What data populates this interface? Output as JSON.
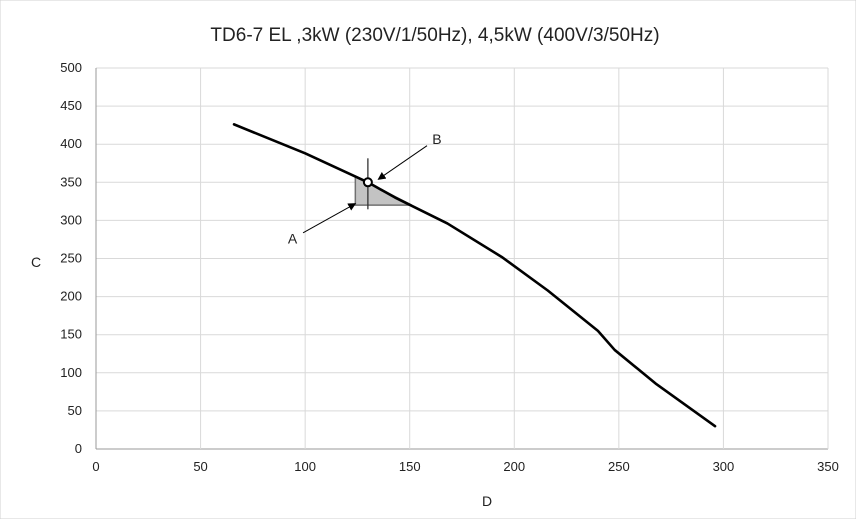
{
  "chart_data": {
    "type": "line",
    "title": "TD6-7 EL ,3kW (230V/1/50Hz), 4,5kW (400V/3/50Hz)",
    "xlabel": "D",
    "ylabel": "C",
    "xlim": [
      0,
      350
    ],
    "ylim": [
      0,
      500
    ],
    "xticks": [
      0,
      50,
      100,
      150,
      200,
      250,
      300,
      350
    ],
    "yticks": [
      0,
      50,
      100,
      150,
      200,
      250,
      300,
      350,
      400,
      450,
      500
    ],
    "grid": true,
    "series": [
      {
        "color": "#000000",
        "x": [
          66,
          100,
          130,
          143,
          168,
          194,
          216,
          240,
          248,
          268,
          296
        ],
        "y": [
          426,
          388,
          350,
          330,
          296,
          252,
          208,
          155,
          130,
          85,
          30
        ]
      }
    ],
    "operating_point": {
      "x": 130,
      "y": 350
    },
    "tolerance_region": [
      [
        124,
        358
      ],
      [
        124,
        320
      ],
      [
        151,
        320
      ]
    ],
    "annotations": [
      {
        "text": "A",
        "x": 94,
        "y": 276,
        "target_x": 124,
        "target_y": 322
      },
      {
        "text": "B",
        "x": 163,
        "y": 407,
        "target_x": 135,
        "target_y": 354
      }
    ]
  }
}
